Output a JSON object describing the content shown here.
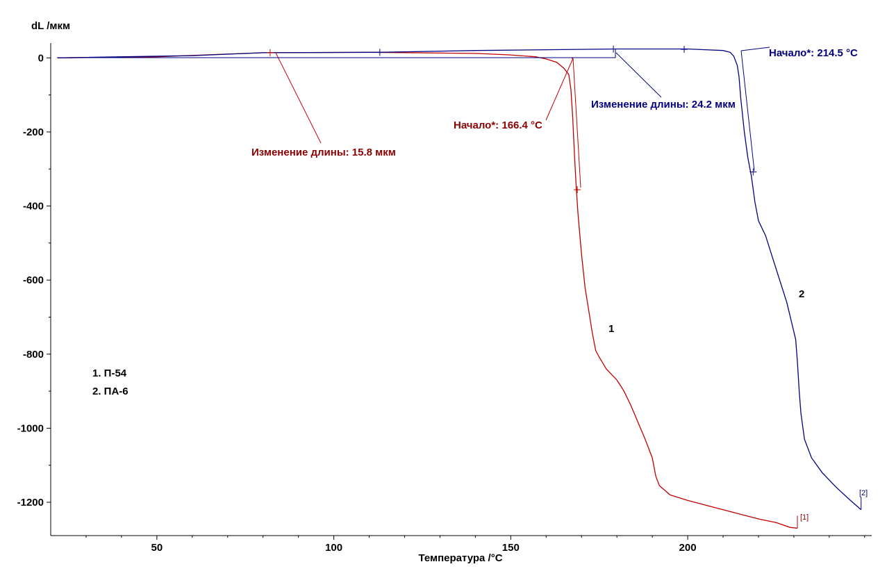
{
  "chart_data": {
    "type": "line",
    "title": "",
    "xlabel": "Температура /°C",
    "ylabel": "dL /мкм",
    "xlim": [
      20,
      252
    ],
    "ylim": [
      -1290,
      40
    ],
    "x_ticks": [
      50,
      100,
      150,
      200
    ],
    "y_ticks": [
      0,
      -200,
      -400,
      -600,
      -800,
      -1000,
      -1200
    ],
    "grid": false,
    "legend_position": "left-bottom",
    "legend": [
      "1. П-54",
      "2. ПА-6"
    ],
    "colors": {
      "s1": "#c00000",
      "s2": "#000080",
      "ann1": "#8b0000",
      "ann2": "#000080"
    },
    "series": [
      {
        "id": "1",
        "curve_label": "1",
        "end_label": "[1]",
        "points": [
          [
            22,
            0
          ],
          [
            50,
            3
          ],
          [
            80,
            14
          ],
          [
            110,
            15
          ],
          [
            140,
            12
          ],
          [
            150,
            8
          ],
          [
            157,
            3
          ],
          [
            160,
            -3
          ],
          [
            163,
            -12
          ],
          [
            165,
            -28
          ],
          [
            166.4,
            -45
          ],
          [
            167,
            -85
          ],
          [
            167.5,
            -160
          ],
          [
            168,
            -260
          ],
          [
            168.5,
            -350
          ],
          [
            169,
            -420
          ],
          [
            170,
            -530
          ],
          [
            171,
            -620
          ],
          [
            172,
            -680
          ],
          [
            173,
            -740
          ],
          [
            174,
            -790
          ],
          [
            175,
            -808
          ],
          [
            177,
            -840
          ],
          [
            180,
            -870
          ],
          [
            182,
            -900
          ],
          [
            184,
            -940
          ],
          [
            186,
            -985
          ],
          [
            188,
            -1030
          ],
          [
            190,
            -1080
          ],
          [
            191,
            -1130
          ],
          [
            192,
            -1155
          ],
          [
            195,
            -1180
          ],
          [
            200,
            -1195
          ],
          [
            210,
            -1220
          ],
          [
            220,
            -1245
          ],
          [
            225,
            -1255
          ],
          [
            229,
            -1268
          ],
          [
            231,
            -1270
          ]
        ]
      },
      {
        "id": "2",
        "curve_label": "2",
        "end_label": "[2]",
        "points": [
          [
            22,
            0
          ],
          [
            60,
            6
          ],
          [
            80,
            14
          ],
          [
            113,
            15
          ],
          [
            140,
            20
          ],
          [
            160,
            22
          ],
          [
            180,
            24
          ],
          [
            200,
            24
          ],
          [
            205,
            22
          ],
          [
            210,
            20
          ],
          [
            212,
            15
          ],
          [
            213,
            5
          ],
          [
            214,
            -20
          ],
          [
            214.5,
            -50
          ],
          [
            215,
            -110
          ],
          [
            216,
            -200
          ],
          [
            217,
            -270
          ],
          [
            218,
            -320
          ],
          [
            219,
            -390
          ],
          [
            220,
            -440
          ],
          [
            222,
            -480
          ],
          [
            224,
            -540
          ],
          [
            226,
            -600
          ],
          [
            228,
            -660
          ],
          [
            229.5,
            -720
          ],
          [
            230.5,
            -760
          ],
          [
            231,
            -820
          ],
          [
            231.5,
            -900
          ],
          [
            232,
            -960
          ],
          [
            233,
            -1030
          ],
          [
            235,
            -1080
          ],
          [
            238,
            -1120
          ],
          [
            242,
            -1160
          ],
          [
            246,
            -1195
          ],
          [
            249,
            -1220
          ]
        ]
      }
    ],
    "annotations": [
      {
        "series": "1",
        "text": "Изменение длины: 15.8 мкм"
      },
      {
        "series": "1",
        "text": "Начало*: 166.4 °C"
      },
      {
        "series": "2",
        "text": "Изменение длины: 24.2 мкм"
      },
      {
        "series": "2",
        "text": "Начало*: 214.5 °C"
      }
    ]
  }
}
